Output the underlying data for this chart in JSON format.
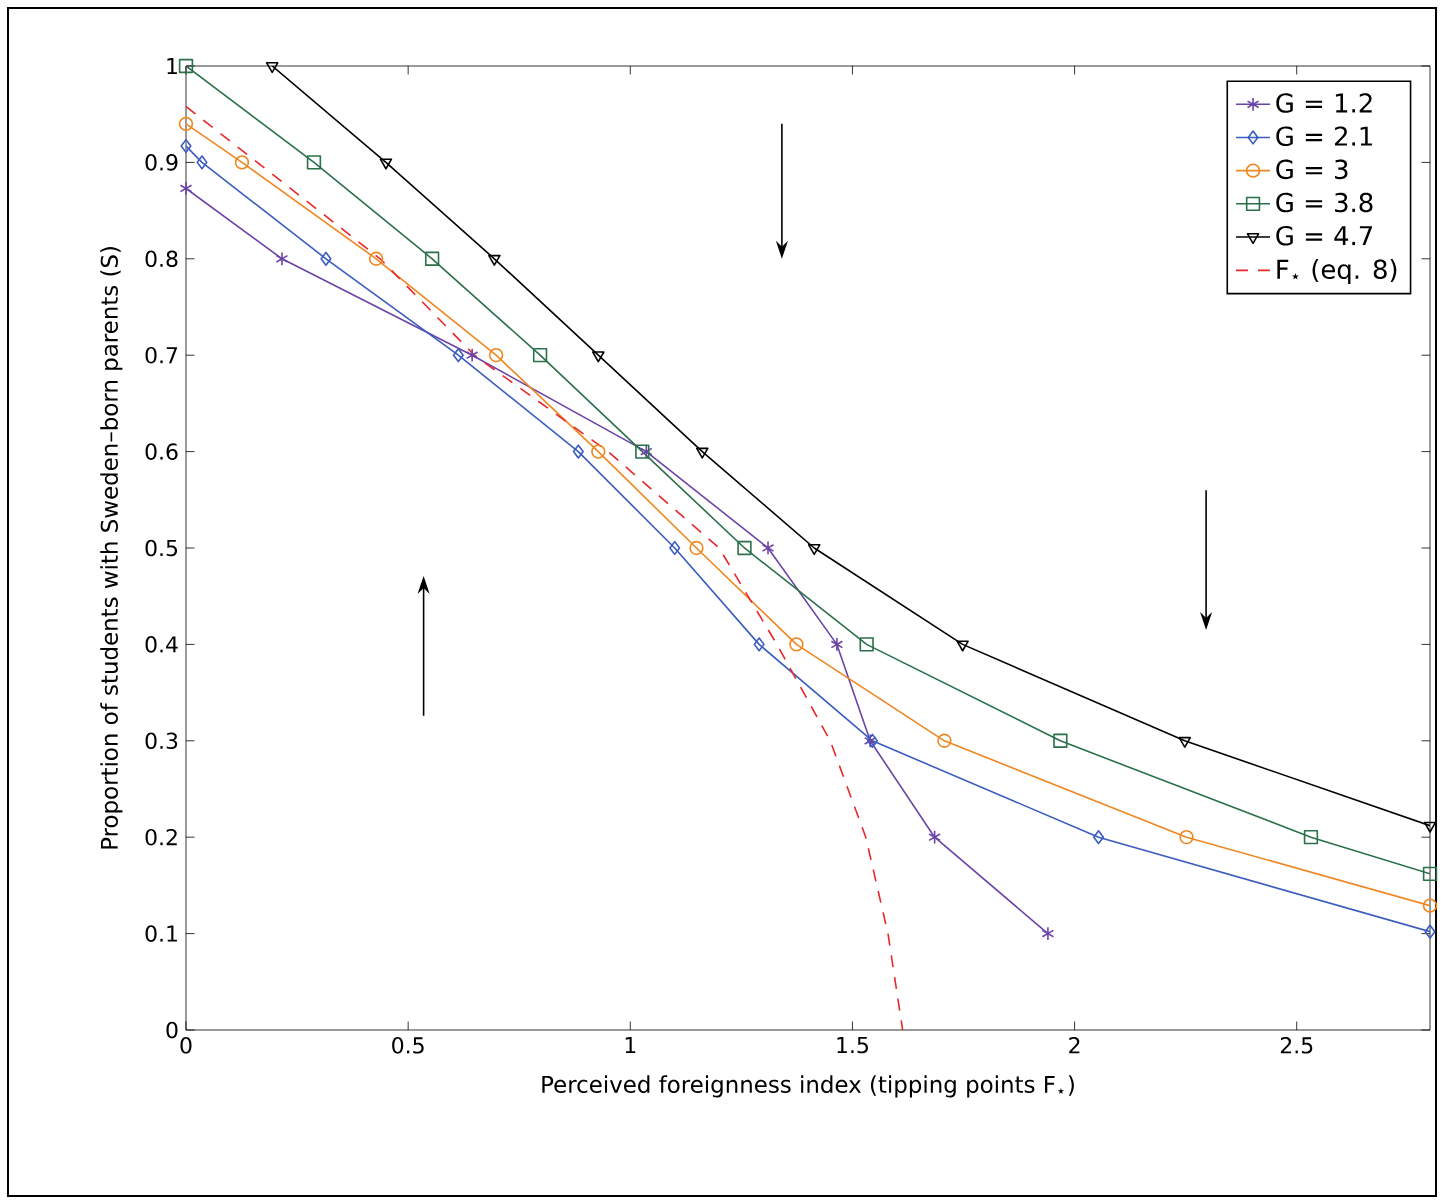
{
  "chart_data": {
    "type": "line",
    "xlabel": "Perceived foreignness index (tipping points F$_{⋆}$)",
    "ylabel": "Proportion of students with Sweden–born parents (S)",
    "xlim": [
      0,
      2.8
    ],
    "ylim": [
      0,
      1
    ],
    "xticks": [
      0,
      0.5,
      1,
      1.5,
      2,
      2.5
    ],
    "yticks": [
      0,
      0.1,
      0.2,
      0.3,
      0.4,
      0.5,
      0.6,
      0.7,
      0.8,
      0.9,
      1
    ],
    "grid": false,
    "legend": "top right",
    "series": [
      {
        "name": "G = 1.2",
        "color": "#6b44a8",
        "marker": "cross",
        "line_style": "solid",
        "x": [
          0,
          0.216,
          0.644,
          1.036,
          1.31,
          1.465,
          1.54,
          1.685,
          1.94
        ],
        "values": [
          0.873,
          0.8,
          0.7,
          0.6,
          0.5,
          0.4,
          0.3,
          0.2,
          0.1
        ]
      },
      {
        "name": "G = 2.1",
        "color": "#3a5cc0",
        "marker": "diamond",
        "line_style": "solid",
        "x": [
          0,
          0.036,
          0.315,
          0.613,
          0.883,
          1.1,
          1.29,
          1.545,
          2.054,
          2.8
        ],
        "values": [
          0.917,
          0.9,
          0.8,
          0.7,
          0.6,
          0.5,
          0.4,
          0.3,
          0.2,
          0.102
        ]
      },
      {
        "name": "G = 3",
        "color": "#f0861f",
        "marker": "circle",
        "line_style": "solid",
        "x": [
          0,
          0.126,
          0.428,
          0.698,
          0.928,
          1.149,
          1.374,
          1.707,
          2.252,
          2.8
        ],
        "values": [
          0.94,
          0.9,
          0.8,
          0.7,
          0.6,
          0.5,
          0.4,
          0.3,
          0.2,
          0.129
        ]
      },
      {
        "name": "G = 3.8",
        "color": "#2a7049",
        "marker": "square",
        "line_style": "solid",
        "x": [
          0,
          0.288,
          0.554,
          0.797,
          1.027,
          1.257,
          1.532,
          1.968,
          2.532,
          2.8
        ],
        "values": [
          1,
          0.9,
          0.8,
          0.7,
          0.6,
          0.5,
          0.4,
          0.3,
          0.2,
          0.162
        ]
      },
      {
        "name": "G = 4.7",
        "color": "#000000",
        "marker": "triangle",
        "line_style": "solid",
        "x": [
          0.194,
          0.45,
          0.694,
          0.928,
          1.162,
          1.414,
          1.748,
          2.248,
          2.8
        ],
        "values": [
          1,
          0.9,
          0.8,
          0.7,
          0.6,
          0.5,
          0.4,
          0.3,
          0.212
        ]
      },
      {
        "name": "F$_{⋆}$ (eq. 8)",
        "color": "#e8262b",
        "marker": "none",
        "line_style": "dashed",
        "x": [
          0,
          0.437,
          0.649,
          0.95,
          1.2,
          1.33,
          1.45,
          1.53,
          1.58,
          1.613
        ],
        "values": [
          0.958,
          0.8,
          0.7,
          0.6,
          0.5,
          0.4,
          0.3,
          0.2,
          0.1,
          0
        ]
      }
    ]
  }
}
